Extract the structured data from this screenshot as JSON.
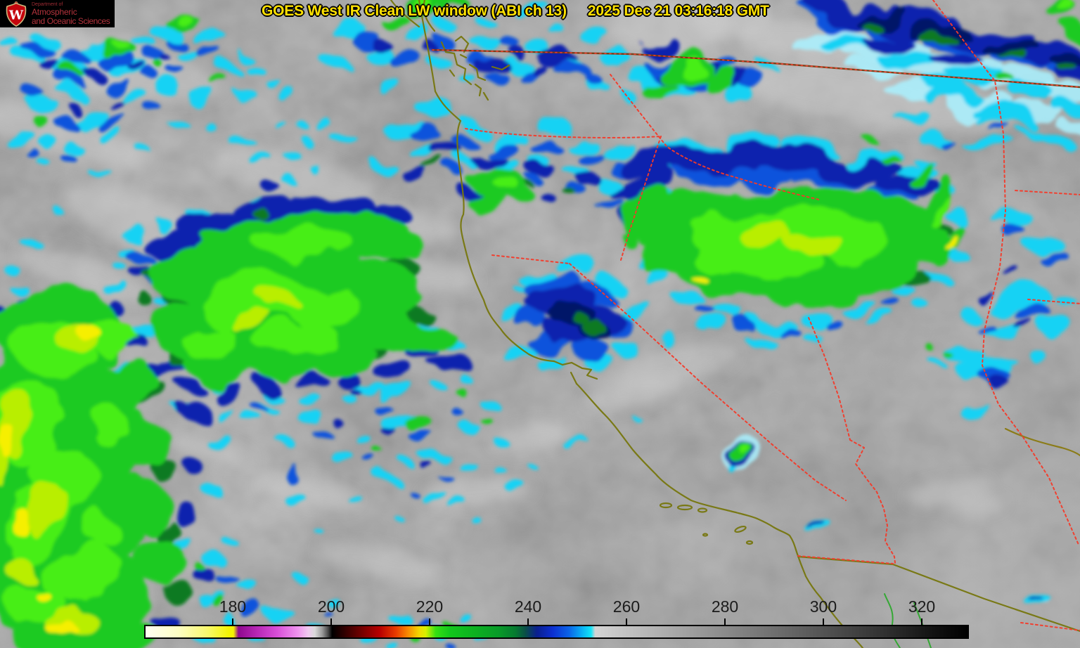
{
  "header": {
    "title": "GOES West IR Clean LW window (ABI ch 13)",
    "timestamp": "2025 Dec 21 03:16:18 GMT"
  },
  "logo": {
    "department": "Department of",
    "name_line1": "Atmospheric",
    "name_line2": "and Oceanic Sciences",
    "monogram": "W"
  },
  "colorbar": {
    "tick_labels": [
      "180",
      "200",
      "220",
      "240",
      "260",
      "280",
      "300",
      "320"
    ]
  },
  "palette": {
    "title_yellow": "#ffe100",
    "logo_red": "#c5050c",
    "state_border_red": "#f43a2a",
    "coastline_olive": "#77770e",
    "gulf_coast_green": "#2ea82e",
    "canada_border_brown": "#7a3b10",
    "cloud_cyan": "#18d2f4",
    "cloud_blue": "#0c52dc",
    "cloud_navy": "#0a22ae",
    "cloud_green": "#1fca24",
    "cloud_bright_green": "#46ee12",
    "cloud_yellow": "#f6ef00",
    "background_gray": "#9b9b9b"
  }
}
